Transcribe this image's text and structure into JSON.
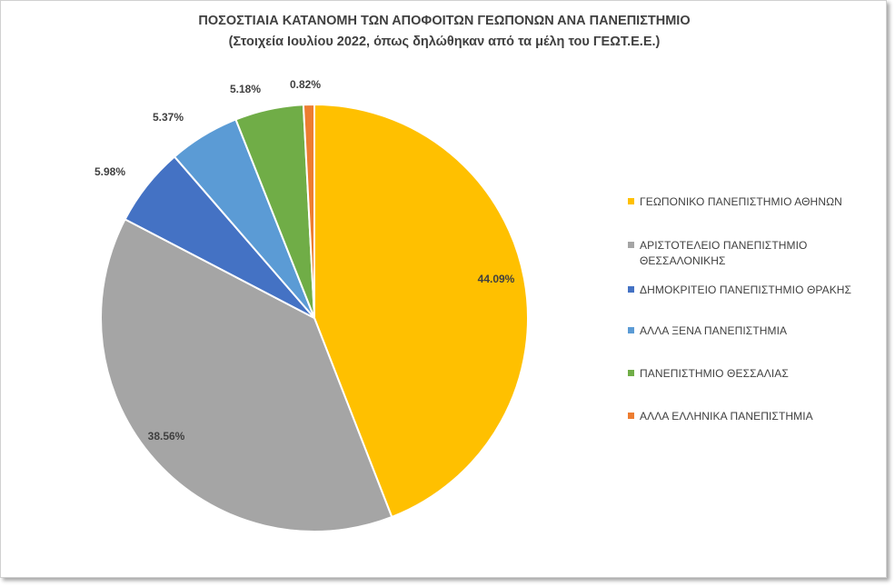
{
  "chart_data": {
    "type": "pie",
    "title": "ΠΟΣΟΣΤΙΑΙΑ ΚΑΤΑΝΟΜΗ ΤΩΝ ΑΠΟΦΟΙΤΩΝ ΓΕΩΠΟΝΩΝ ΑΝΑ ΠΑΝΕΠΙΣΤΗΜΙΟ",
    "subtitle": "(Στοιχεία Ιουλίου 2022, όπως δηλώθηκαν από τα μέλη του ΓΕΩΤ.Ε.Ε.)",
    "legend_position": "right",
    "slices": [
      {
        "label": "ΓΕΩΠΟΝΙΚΟ ΠΑΝΕΠΙΣΤΗΜΙΟ ΑΘΗΝΩΝ",
        "value": 44.09,
        "display": "44.09%",
        "color": "#FFC000"
      },
      {
        "label": "ΑΡΙΣΤΟΤΕΛΕΙΟ ΠΑΝΕΠΙΣΤΗΜΙΟ ΘΕΣΣΑΛΟΝΙΚΗΣ",
        "value": 38.56,
        "display": "38.56%",
        "color": "#A5A5A5"
      },
      {
        "label": "ΔΗΜΟΚΡΙΤΕΙΟ ΠΑΝΕΠΙΣΤΗΜΙΟ ΘΡΑΚΗΣ",
        "value": 5.98,
        "display": "5.98%",
        "color": "#4472C4"
      },
      {
        "label": "ΑΛΛΑ ΞΕΝΑ ΠΑΝΕΠΙΣΤΗΜΙΑ",
        "value": 5.37,
        "display": "5.37%",
        "color": "#5B9BD5"
      },
      {
        "label": "ΠΑΝΕΠΙΣΤΗΜΙΟ ΘΕΣΣΑΛΙΑΣ",
        "value": 5.18,
        "display": "5.18%",
        "color": "#70AD47"
      },
      {
        "label": "ΑΛΛΑ ΕΛΛΗΝΙΚΑ ΠΑΝΕΠΙΣΤΗΜΙΑ",
        "value": 0.82,
        "display": "0.82%",
        "color": "#ED7D31"
      }
    ]
  }
}
